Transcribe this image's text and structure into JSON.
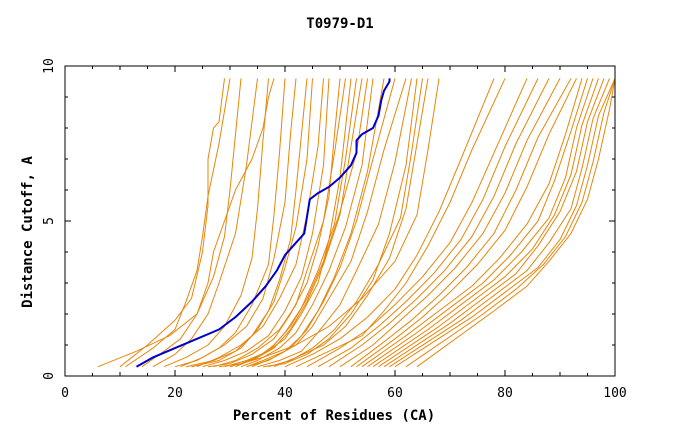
{
  "chart_data": {
    "type": "line",
    "title": "T0979-D1",
    "xlabel": "Percent of Residues (CA)",
    "ylabel": "Distance Cutoff, A",
    "xlim": [
      0,
      100
    ],
    "ylim": [
      0,
      10
    ],
    "x_ticks": [
      "0",
      "20",
      "40",
      "60",
      "80",
      "100"
    ],
    "y_ticks": [
      "0",
      "5",
      "10"
    ],
    "grid": false,
    "background_series_color": "#e8860a",
    "highlight_color": "#0000cc",
    "highlight_series": {
      "x": [
        13.0,
        16.0,
        20.0,
        24.0,
        28.0,
        31.0,
        34.0,
        36.5,
        38.5,
        40.0,
        42.0,
        43.5,
        44.5,
        46.0,
        48.0,
        50.0,
        52.0,
        53.0,
        53.0,
        54.0,
        56.0,
        57.0,
        57.5,
        58.0,
        59.0,
        59.0
      ],
      "y": [
        0.3,
        0.6,
        0.9,
        1.2,
        1.5,
        1.9,
        2.4,
        2.9,
        3.4,
        3.9,
        4.3,
        4.6,
        5.7,
        5.9,
        6.1,
        6.4,
        6.8,
        7.2,
        7.6,
        7.8,
        8.0,
        8.4,
        8.9,
        9.2,
        9.5,
        9.6
      ]
    },
    "background_series": [
      {
        "x": [
          6,
          13,
          19,
          24,
          26,
          27,
          29,
          31,
          34,
          36,
          37,
          38
        ],
        "y": [
          0.3,
          0.8,
          1.3,
          2.0,
          3.0,
          4.0,
          5.0,
          6.0,
          7.0,
          8.0,
          9.0,
          9.6
        ]
      },
      {
        "x": [
          10,
          15,
          20,
          23,
          25,
          26,
          26,
          27,
          28,
          29
        ],
        "y": [
          0.3,
          1.0,
          1.8,
          2.5,
          4.0,
          5.5,
          7.0,
          8.0,
          8.2,
          9.6
        ]
      },
      {
        "x": [
          11,
          16,
          20,
          22,
          24,
          25,
          26,
          28,
          30
        ],
        "y": [
          0.3,
          0.9,
          1.5,
          2.4,
          3.4,
          4.5,
          5.8,
          7.5,
          9.6
        ]
      },
      {
        "x": [
          14,
          18,
          21,
          24,
          27,
          29,
          30,
          31,
          32
        ],
        "y": [
          0.3,
          0.8,
          1.2,
          2.0,
          3.2,
          4.5,
          6.0,
          7.8,
          9.6
        ]
      },
      {
        "x": [
          16,
          20,
          23,
          26,
          28,
          31,
          33,
          35
        ],
        "y": [
          0.3,
          0.7,
          1.2,
          2.0,
          3.0,
          4.6,
          6.8,
          9.6
        ]
      },
      {
        "x": [
          18,
          22,
          26,
          29,
          32,
          34,
          35,
          36,
          37
        ],
        "y": [
          0.3,
          0.6,
          1.0,
          1.6,
          2.6,
          3.8,
          5.4,
          7.6,
          9.6
        ]
      },
      {
        "x": [
          20,
          24,
          28,
          31,
          34,
          37,
          38,
          39,
          40
        ],
        "y": [
          0.3,
          0.5,
          0.9,
          1.4,
          2.3,
          3.6,
          5.2,
          7.2,
          9.6
        ]
      },
      {
        "x": [
          21,
          25,
          29,
          33,
          36,
          38,
          40,
          41,
          42
        ],
        "y": [
          0.3,
          0.6,
          1.0,
          1.6,
          2.5,
          3.8,
          5.6,
          7.8,
          9.6
        ]
      },
      {
        "x": [
          22,
          27,
          31,
          34,
          37,
          39,
          41,
          42,
          43,
          44
        ],
        "y": [
          0.3,
          0.5,
          0.8,
          1.3,
          2.1,
          3.1,
          4.4,
          6.0,
          7.8,
          9.6
        ]
      },
      {
        "x": [
          23,
          28,
          32,
          35,
          38,
          40,
          42,
          44,
          45
        ],
        "y": [
          0.3,
          0.5,
          0.9,
          1.5,
          2.4,
          3.5,
          4.8,
          7.0,
          9.6
        ]
      },
      {
        "x": [
          24,
          28,
          32,
          36,
          39,
          42,
          44,
          46,
          47
        ],
        "y": [
          0.3,
          0.6,
          1.0,
          1.6,
          2.5,
          3.6,
          5.2,
          7.4,
          9.6
        ]
      },
      {
        "x": [
          25,
          29,
          33,
          37,
          40,
          43,
          45,
          47,
          48
        ],
        "y": [
          0.3,
          0.5,
          0.8,
          1.3,
          2.1,
          3.2,
          4.6,
          6.8,
          9.6
        ]
      },
      {
        "x": [
          26,
          30,
          34,
          38,
          41,
          44,
          46,
          48,
          49,
          50
        ],
        "y": [
          0.3,
          0.4,
          0.7,
          1.2,
          2.0,
          3.0,
          4.2,
          5.8,
          7.8,
          9.6
        ]
      },
      {
        "x": [
          27,
          31,
          35,
          39,
          42,
          44,
          47,
          49,
          51
        ],
        "y": [
          0.3,
          0.5,
          0.9,
          1.5,
          2.3,
          3.4,
          5.0,
          7.2,
          9.6
        ]
      },
      {
        "x": [
          28,
          32,
          36,
          40,
          43,
          46,
          48,
          50,
          52
        ],
        "y": [
          0.3,
          0.4,
          0.7,
          1.2,
          2.0,
          3.0,
          4.4,
          6.4,
          9.6
        ]
      },
      {
        "x": [
          29,
          33,
          37,
          40,
          43,
          46,
          49,
          51,
          53
        ],
        "y": [
          0.3,
          0.5,
          0.8,
          1.4,
          2.2,
          3.4,
          4.9,
          7.0,
          9.6
        ]
      },
      {
        "x": [
          30,
          34,
          38,
          41,
          44,
          47,
          50,
          52,
          54
        ],
        "y": [
          0.3,
          0.5,
          0.9,
          1.5,
          2.4,
          3.6,
          5.2,
          7.4,
          9.6
        ]
      },
      {
        "x": [
          31,
          35,
          38,
          41,
          44,
          47,
          50,
          53,
          55
        ],
        "y": [
          0.3,
          0.6,
          1.0,
          1.6,
          2.5,
          3.7,
          5.3,
          7.2,
          9.6
        ]
      },
      {
        "x": [
          32,
          35,
          39,
          42,
          45,
          48,
          51,
          54,
          56
        ],
        "y": [
          0.3,
          0.5,
          0.9,
          1.4,
          2.3,
          3.4,
          4.8,
          6.8,
          9.6
        ]
      },
      {
        "x": [
          33,
          36,
          40,
          43,
          46,
          49,
          52,
          55,
          58
        ],
        "y": [
          0.3,
          0.5,
          0.8,
          1.3,
          2.1,
          3.2,
          4.6,
          6.6,
          9.6
        ]
      },
      {
        "x": [
          33,
          37,
          41,
          44,
          47,
          50,
          53,
          56,
          60
        ],
        "y": [
          0.3,
          0.5,
          0.9,
          1.5,
          2.4,
          3.5,
          5.0,
          7.0,
          9.6
        ]
      },
      {
        "x": [
          34,
          38,
          42,
          45,
          48,
          52,
          55,
          58,
          62
        ],
        "y": [
          0.3,
          0.6,
          1.0,
          1.6,
          2.5,
          3.7,
          5.3,
          7.3,
          9.6
        ]
      },
      {
        "x": [
          35,
          39,
          43,
          46,
          50,
          53,
          57,
          60,
          63
        ],
        "y": [
          0.3,
          0.5,
          0.8,
          1.4,
          2.3,
          3.4,
          4.9,
          6.9,
          9.6
        ]
      },
      {
        "x": [
          36,
          40,
          44,
          48,
          52,
          56,
          59,
          62,
          64
        ],
        "y": [
          0.3,
          0.4,
          0.7,
          1.2,
          2.0,
          3.1,
          4.6,
          6.8,
          9.6
        ]
      },
      {
        "x": [
          37,
          41,
          45,
          49,
          53,
          57,
          61,
          63,
          65
        ],
        "y": [
          0.3,
          0.5,
          0.9,
          1.5,
          2.4,
          3.6,
          5.1,
          7.2,
          9.6
        ]
      },
      {
        "x": [
          38,
          42,
          47,
          51,
          55,
          59,
          62,
          64,
          66
        ],
        "y": [
          0.3,
          0.6,
          1.0,
          1.6,
          2.6,
          3.8,
          5.4,
          7.5,
          9.6
        ]
      },
      {
        "x": [
          30,
          36,
          42,
          48,
          54,
          60,
          64,
          66,
          68
        ],
        "y": [
          0.3,
          0.6,
          1.0,
          1.6,
          2.5,
          3.7,
          5.2,
          7.3,
          9.6
        ]
      },
      {
        "x": [
          40,
          45,
          50,
          55,
          60,
          64,
          68,
          72,
          78
        ],
        "y": [
          0.3,
          0.7,
          1.2,
          1.9,
          2.8,
          3.9,
          5.3,
          7.0,
          9.6
        ]
      },
      {
        "x": [
          42,
          48,
          54,
          58,
          62,
          66,
          70,
          74,
          80
        ],
        "y": [
          0.3,
          0.8,
          1.3,
          2.1,
          3.0,
          4.2,
          5.6,
          7.3,
          9.6
        ]
      },
      {
        "x": [
          44,
          50,
          55,
          60,
          65,
          70,
          74,
          78,
          84
        ],
        "y": [
          0.3,
          0.9,
          1.5,
          2.3,
          3.2,
          4.3,
          5.6,
          7.2,
          9.6
        ]
      },
      {
        "x": [
          46,
          52,
          57,
          62,
          67,
          72,
          76,
          80,
          86
        ],
        "y": [
          0.3,
          0.9,
          1.6,
          2.4,
          3.3,
          4.4,
          5.7,
          7.4,
          9.6
        ]
      },
      {
        "x": [
          48,
          54,
          59,
          64,
          69,
          74,
          78,
          82,
          88
        ],
        "y": [
          0.3,
          1.0,
          1.7,
          2.5,
          3.4,
          4.5,
          5.8,
          7.5,
          9.6
        ]
      },
      {
        "x": [
          50,
          56,
          61,
          66,
          71,
          76,
          80,
          84,
          90
        ],
        "y": [
          0.3,
          1.0,
          1.8,
          2.6,
          3.5,
          4.6,
          5.9,
          7.6,
          9.6
        ]
      },
      {
        "x": [
          52,
          58,
          63,
          68,
          73,
          78,
          82,
          86,
          92
        ],
        "y": [
          0.3,
          1.1,
          1.8,
          2.6,
          3.5,
          4.6,
          6.0,
          7.7,
          9.6
        ]
      },
      {
        "x": [
          53,
          60,
          65,
          70,
          75,
          80,
          84,
          88,
          93
        ],
        "y": [
          0.3,
          1.2,
          1.9,
          2.7,
          3.6,
          4.7,
          6.1,
          7.8,
          9.6
        ]
      },
      {
        "x": [
          54,
          62,
          68,
          74,
          79,
          84,
          88,
          91,
          94
        ],
        "y": [
          0.3,
          1.3,
          2.1,
          2.9,
          3.8,
          4.9,
          6.2,
          7.8,
          9.6
        ]
      },
      {
        "x": [
          55,
          64,
          70,
          76,
          81,
          86,
          89,
          92,
          95
        ],
        "y": [
          0.3,
          1.4,
          2.2,
          3.0,
          3.9,
          5.0,
          6.3,
          7.9,
          9.6
        ]
      },
      {
        "x": [
          56,
          66,
          72,
          78,
          83,
          88,
          91,
          93,
          96
        ],
        "y": [
          0.3,
          1.5,
          2.3,
          3.1,
          4.0,
          5.1,
          6.4,
          8.0,
          9.6
        ]
      },
      {
        "x": [
          57,
          68,
          74,
          80,
          85,
          89,
          92,
          94,
          97
        ],
        "y": [
          0.3,
          1.6,
          2.4,
          3.2,
          4.1,
          5.2,
          6.5,
          8.1,
          9.6
        ]
      },
      {
        "x": [
          58,
          70,
          76,
          82,
          86,
          90,
          93,
          95,
          98
        ],
        "y": [
          0.3,
          1.7,
          2.5,
          3.3,
          4.2,
          5.3,
          6.6,
          8.2,
          9.6
        ]
      },
      {
        "x": [
          59,
          72,
          78,
          84,
          88,
          92,
          94,
          96,
          99
        ],
        "y": [
          0.3,
          1.8,
          2.6,
          3.4,
          4.3,
          5.4,
          6.7,
          8.3,
          9.6
        ]
      },
      {
        "x": [
          60,
          74,
          80,
          86,
          90,
          93,
          95,
          97,
          100
        ],
        "y": [
          0.3,
          1.9,
          2.7,
          3.5,
          4.4,
          5.5,
          6.8,
          8.4,
          9.6
        ]
      },
      {
        "x": [
          62,
          76,
          82,
          87,
          91,
          94,
          96,
          98,
          100
        ],
        "y": [
          0.3,
          2.0,
          2.8,
          3.6,
          4.5,
          5.6,
          6.9,
          8.5,
          9.6
        ]
      },
      {
        "x": [
          64,
          78,
          84,
          88,
          92,
          95,
          97,
          99,
          100
        ],
        "y": [
          0.3,
          2.1,
          2.9,
          3.7,
          4.6,
          5.7,
          7.0,
          8.6,
          9.6
        ]
      }
    ]
  }
}
